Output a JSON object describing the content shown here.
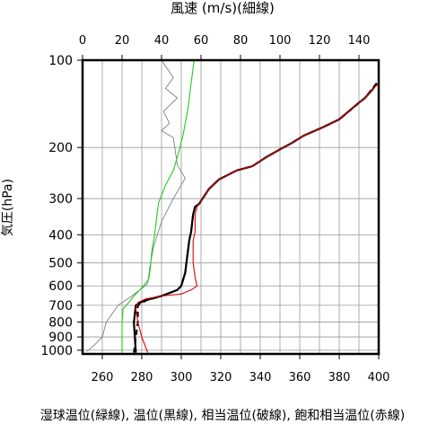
{
  "chart_data": {
    "type": "line",
    "title": "",
    "xlabel_top": "風速 (m/s)(細線)",
    "xlabel_bottom": "湿球温位(緑線), 温位(黒線), 相当温位(破線), 飽和相当温位(赤線)",
    "ylabel": "気圧(hPa)",
    "x_top_ticks": [
      "0",
      "20",
      "40",
      "60",
      "80",
      "100",
      "120",
      "140"
    ],
    "x_top_lim": [
      0,
      150
    ],
    "x_bottom_ticks": [
      "260",
      "280",
      "300",
      "320",
      "340",
      "360",
      "380",
      "400"
    ],
    "x_bottom_lim": [
      250,
      400
    ],
    "y_ticks": [
      "100",
      "200",
      "300",
      "400",
      "500",
      "600",
      "700",
      "800",
      "900",
      "1000"
    ],
    "y_lim": [
      100,
      1030
    ],
    "y_scale": "log",
    "grid": true,
    "series": [
      {
        "kind": "wind_speed",
        "axis": "top",
        "color": "#7f7f7f",
        "style": "thin",
        "points": [
          [
            40,
            100
          ],
          [
            46,
            115
          ],
          [
            42,
            125
          ],
          [
            48,
            135
          ],
          [
            41,
            150
          ],
          [
            44,
            165
          ],
          [
            40,
            175
          ],
          [
            46,
            185
          ],
          [
            48,
            230
          ],
          [
            52,
            255
          ],
          [
            46,
            300
          ],
          [
            40,
            360
          ],
          [
            36,
            440
          ],
          [
            34,
            520
          ],
          [
            33,
            590
          ],
          [
            25,
            650
          ],
          [
            18,
            700
          ],
          [
            12,
            800
          ],
          [
            10,
            900
          ],
          [
            6,
            960
          ],
          [
            2,
            1010
          ]
        ]
      },
      {
        "kind": "wet_bulb_potential_temperature",
        "axis": "bottom",
        "color": "#22cc22",
        "style": "solid",
        "points": [
          [
            306.5,
            100
          ],
          [
            305,
            120
          ],
          [
            303.5,
            145
          ],
          [
            301,
            180
          ],
          [
            298.5,
            210
          ],
          [
            296,
            240
          ],
          [
            292,
            270
          ],
          [
            288.5,
            310
          ],
          [
            287.5,
            350
          ],
          [
            286.5,
            400
          ],
          [
            285,
            460
          ],
          [
            284.3,
            520
          ],
          [
            283.5,
            570
          ],
          [
            280,
            610
          ],
          [
            276,
            650
          ],
          [
            273,
            690
          ],
          [
            270.5,
            720
          ],
          [
            270,
            800
          ],
          [
            270,
            900
          ],
          [
            270,
            1020
          ]
        ]
      },
      {
        "kind": "potential_temperature",
        "axis": "bottom",
        "color": "#000000",
        "style": "solid",
        "points": [
          [
            399,
            120
          ],
          [
            397,
            126
          ],
          [
            393,
            135
          ],
          [
            390,
            140
          ],
          [
            380,
            160
          ],
          [
            372,
            170
          ],
          [
            362,
            182
          ],
          [
            356,
            193
          ],
          [
            350,
            203
          ],
          [
            343,
            216
          ],
          [
            336,
            232
          ],
          [
            328,
            240
          ],
          [
            319,
            258
          ],
          [
            314,
            278
          ],
          [
            309,
            313
          ],
          [
            307,
            320
          ],
          [
            306,
            340
          ],
          [
            305,
            390
          ],
          [
            304,
            420
          ],
          [
            302,
            540
          ],
          [
            300,
            600
          ],
          [
            298,
            620
          ],
          [
            290,
            650
          ],
          [
            281,
            675
          ],
          [
            277,
            700
          ],
          [
            276,
            800
          ],
          [
            277,
            1020
          ]
        ]
      },
      {
        "kind": "equivalent_potential_temperature",
        "axis": "bottom",
        "color": "#000000",
        "style": "dashed",
        "points": [
          [
            399,
            120
          ],
          [
            393,
            135
          ],
          [
            380,
            160
          ],
          [
            372,
            170
          ],
          [
            362,
            182
          ],
          [
            356,
            193
          ],
          [
            350,
            203
          ],
          [
            343,
            216
          ],
          [
            336,
            232
          ],
          [
            328,
            240
          ],
          [
            319,
            258
          ],
          [
            314,
            278
          ],
          [
            309,
            313
          ],
          [
            307,
            320
          ],
          [
            306,
            340
          ],
          [
            305,
            390
          ],
          [
            304,
            420
          ],
          [
            302,
            540
          ],
          [
            300,
            600
          ],
          [
            298,
            620
          ],
          [
            290,
            650
          ],
          [
            282,
            675
          ],
          [
            278,
            700
          ],
          [
            278,
            800
          ],
          [
            277,
            900
          ],
          [
            276,
            1020
          ]
        ]
      },
      {
        "kind": "saturated_equivalent_potential_temperature",
        "axis": "bottom",
        "color": "#dd0000",
        "style": "solid",
        "points": [
          [
            400,
            120
          ],
          [
            397,
            126
          ],
          [
            393,
            135
          ],
          [
            390,
            140
          ],
          [
            380,
            160
          ],
          [
            372,
            170
          ],
          [
            362,
            182
          ],
          [
            356,
            193
          ],
          [
            350,
            203
          ],
          [
            343,
            216
          ],
          [
            336,
            232
          ],
          [
            328,
            240
          ],
          [
            319,
            258
          ],
          [
            314,
            278
          ],
          [
            309,
            313
          ],
          [
            308,
            320
          ],
          [
            307,
            340
          ],
          [
            307,
            390
          ],
          [
            306,
            420
          ],
          [
            306,
            500
          ],
          [
            307,
            560
          ],
          [
            308,
            600
          ],
          [
            305,
            620
          ],
          [
            300,
            640
          ],
          [
            290,
            650
          ],
          [
            282,
            665
          ],
          [
            278,
            685
          ],
          [
            277,
            720
          ],
          [
            278,
            800
          ],
          [
            280,
            900
          ],
          [
            283,
            1020
          ]
        ]
      }
    ]
  }
}
